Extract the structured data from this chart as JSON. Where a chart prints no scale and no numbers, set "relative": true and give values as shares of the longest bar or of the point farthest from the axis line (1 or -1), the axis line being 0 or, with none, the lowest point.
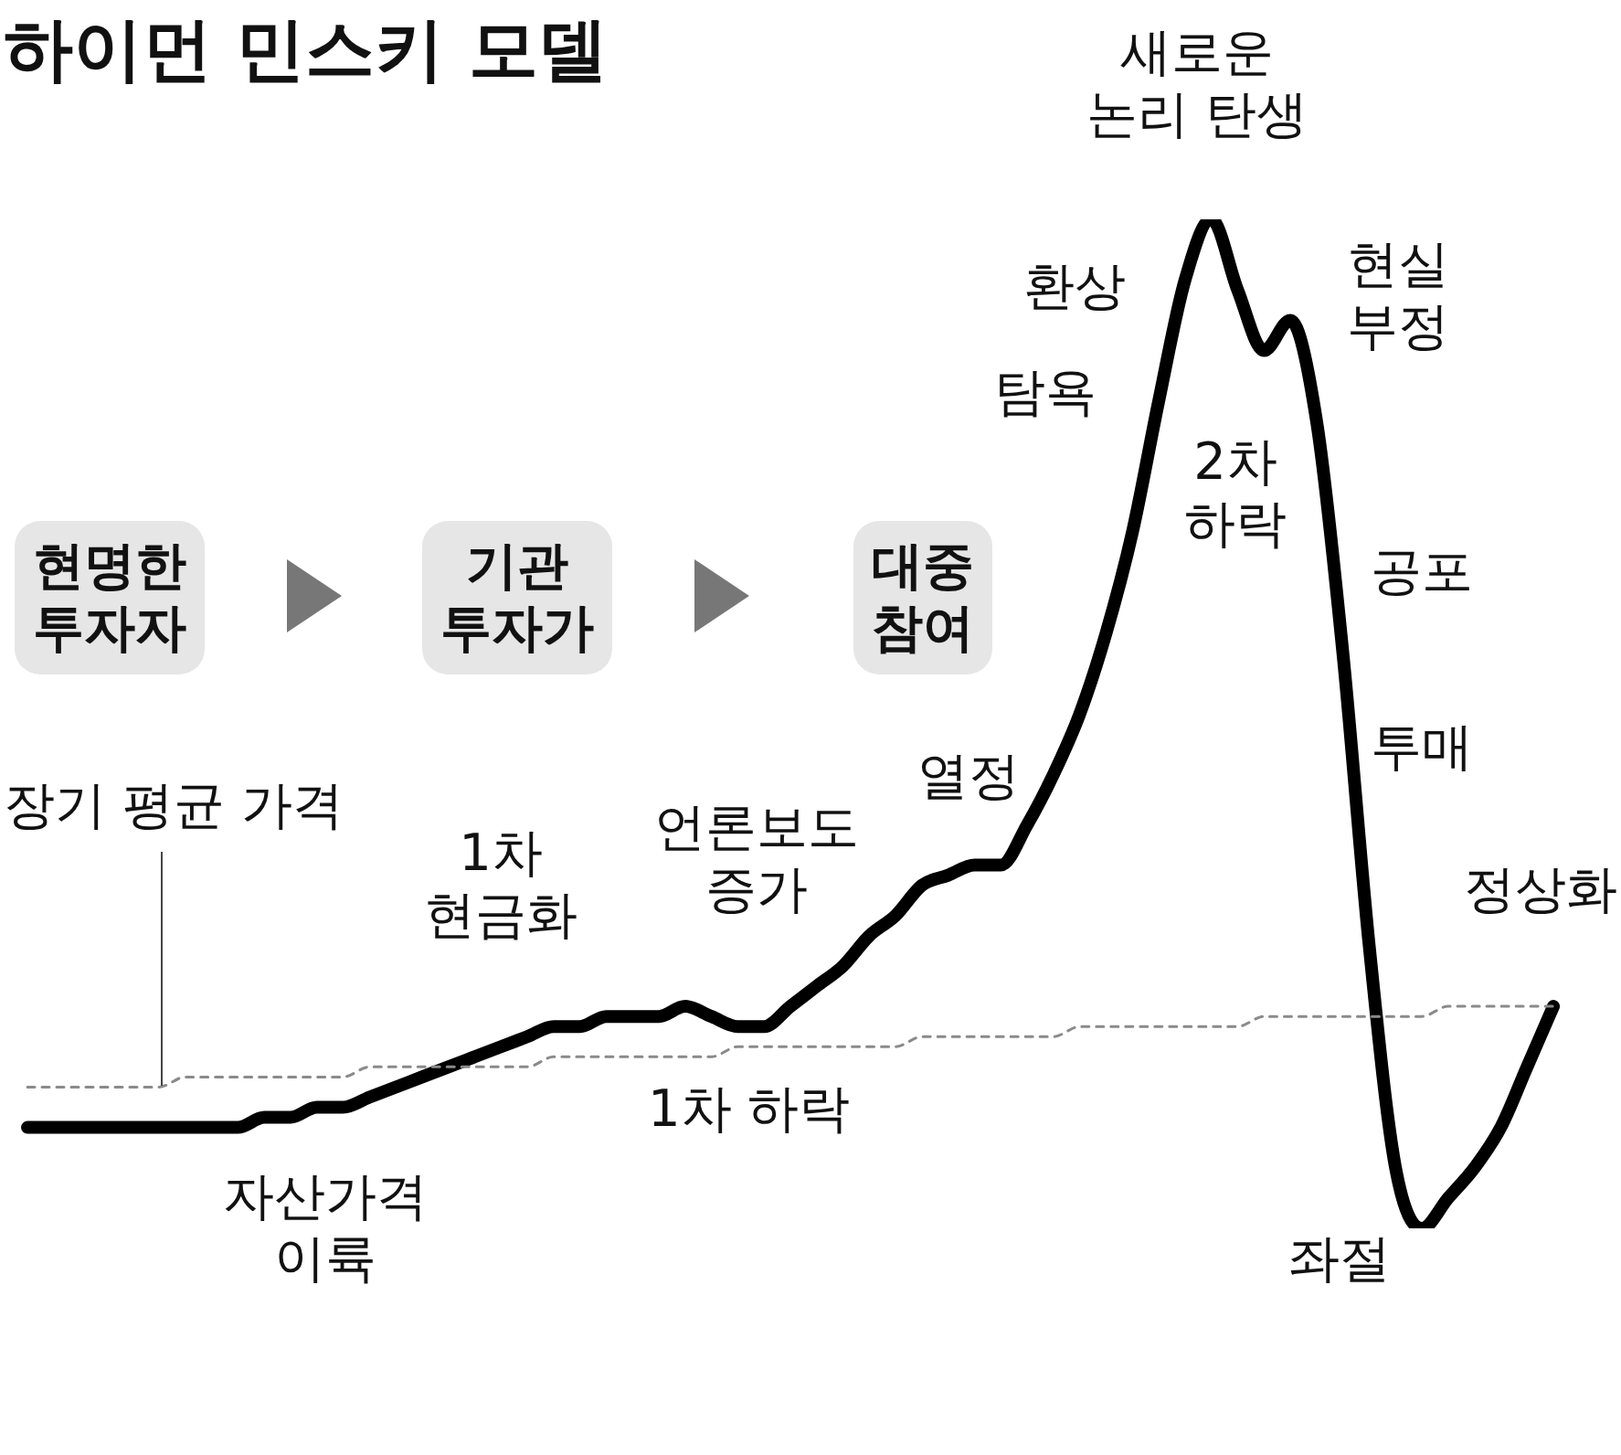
{
  "chart_data": {
    "type": "line",
    "title": "하이먼 민스키 모델",
    "relative": true,
    "categories": [
      null,
      null,
      null,
      null,
      null,
      null,
      null,
      null,
      null,
      null,
      null,
      null,
      null,
      null,
      null,
      null,
      null,
      null,
      null,
      null,
      null,
      null,
      null,
      null,
      null,
      null,
      null,
      null,
      null,
      null,
      null,
      null,
      null,
      null,
      null,
      null,
      null,
      null,
      null,
      null,
      null,
      null,
      null,
      null,
      null,
      null,
      null,
      null,
      null,
      null,
      null,
      null,
      null,
      null,
      null,
      null,
      null,
      null,
      null
    ],
    "series": [
      {
        "color": "#8a8a8a",
        "line_style": "dashed",
        "values": [
          0.14,
          0.14,
          0.14,
          0.14,
          0.14,
          0.14,
          0.15,
          0.15,
          0.15,
          0.15,
          0.15,
          0.15,
          0.15,
          0.16,
          0.16,
          0.16,
          0.16,
          0.16,
          0.16,
          0.16,
          0.17,
          0.17,
          0.17,
          0.17,
          0.17,
          0.17,
          0.17,
          0.18,
          0.18,
          0.18,
          0.18,
          0.18,
          0.18,
          0.18,
          0.19,
          0.19,
          0.19,
          0.19,
          0.19,
          0.19,
          0.2,
          0.2,
          0.2,
          0.2,
          0.2,
          0.2,
          0.2,
          0.21,
          0.21,
          0.21,
          0.21,
          0.21,
          0.21,
          0.21,
          0.22,
          0.22,
          0.22,
          0.22,
          0.22
        ]
      },
      {
        "color": "#000000",
        "line_style": "solid",
        "values": [
          0.1,
          0.1,
          0.1,
          0.1,
          0.1,
          0.1,
          0.1,
          0.1,
          0.1,
          0.11,
          0.11,
          0.12,
          0.12,
          0.13,
          0.14,
          0.15,
          0.16,
          0.17,
          0.18,
          0.19,
          0.2,
          0.2,
          0.21,
          0.21,
          0.21,
          0.22,
          0.21,
          0.2,
          0.2,
          0.22,
          0.24,
          0.26,
          0.29,
          0.31,
          0.34,
          0.35,
          0.36,
          0.36,
          0.4,
          0.45,
          0.51,
          0.59,
          0.69,
          0.82,
          0.94,
          1,
          0.93,
          0.87,
          0.9,
          0.8,
          0.57,
          0.28,
          0.06,
          0,
          0.03,
          0.06,
          0.1,
          0.16,
          0.22
        ]
      }
    ],
    "annotations": [
      "새로운\n논리 탄생",
      "환상",
      "탐욕",
      "현실\n부정",
      "2차\n하락",
      "공포",
      "투매",
      "정상화",
      "열정",
      "언론보도\n증가",
      "1차\n현금화",
      "장기 평균 가격",
      "1차 하락",
      "자산가격\n이륙",
      "좌절",
      "현명한\n투자자",
      "기관\n투자가",
      "대중\n참여"
    ]
  }
}
